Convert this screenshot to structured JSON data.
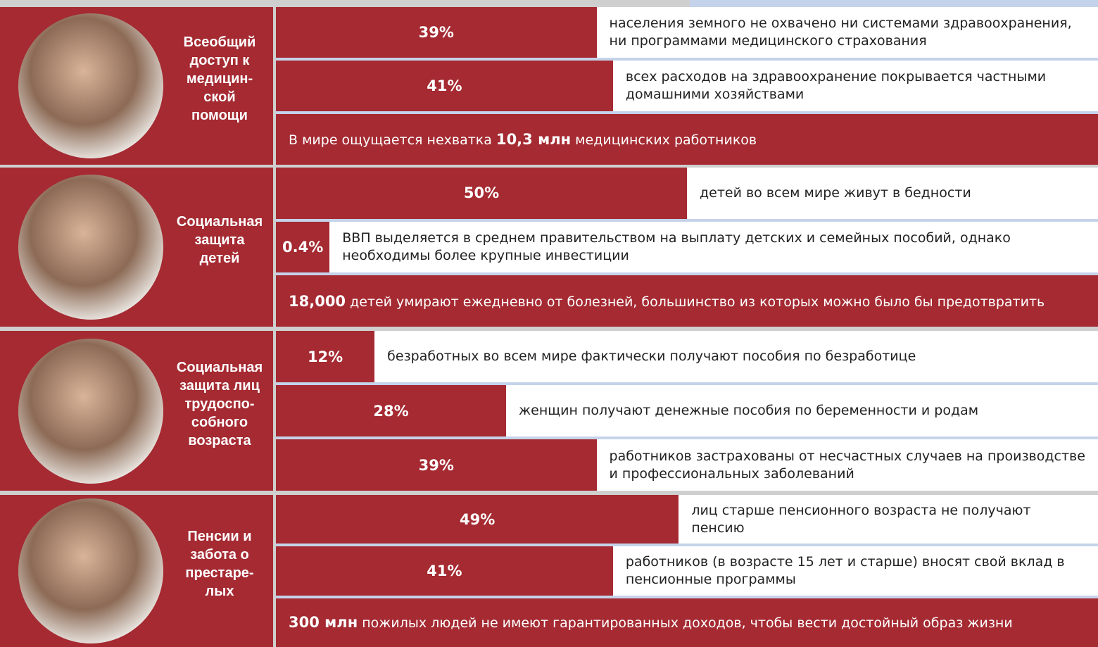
{
  "sections": [
    {
      "title_lines": [
        "Всеобщий",
        "доступ к",
        "медицин-",
        "ской",
        "помощи"
      ],
      "rows": [
        {
          "value": {
            "value": 39,
            "label": "39%"
          },
          "text": "населения земного не охвачено ни системами здравоохранения, ни программами медицинского страхования"
        },
        {
          "value": {
            "value": 41,
            "label": "41%"
          },
          "text": "всех расходов на здравоохранение покрывается частными домашними хозяйствами"
        },
        {
          "before": "В мире ощущается нехватка ",
          "bold": "10,3 млн",
          "after": " медицинских работников"
        }
      ]
    },
    {
      "title_lines": [
        "Социальная",
        "защита",
        "детей"
      ],
      "rows": [
        {
          "value": {
            "value": 50,
            "label": "50%"
          },
          "text": "детей во всем мире живут в бедности"
        },
        {
          "value": 0.4,
          "label": "0.4%",
          "text": "ВВП выделяется в среднем правительством на выплату детских и семейных пособий, однако необходимы более крупные инвестиции"
        },
        {
          "before": "",
          "bold": "18,000",
          "after": " детей умирают ежедневно от болезней, большинство из которых можно было бы предотвратить"
        }
      ]
    },
    {
      "title_lines": [
        "Социальная",
        "защита лиц",
        "трудоспо-",
        "собного",
        "возраста"
      ],
      "rows": [
        {
          "value": {
            "value": 12,
            "label": "12%"
          },
          "text": "безработных во всем мире фактически получают пособия по безработице"
        },
        {
          "value": {
            "value": 28,
            "label": "28%"
          },
          "text": "женщин получают денежные пособия по беременности и родам"
        },
        {
          "value": {
            "value": 39,
            "label": "39%"
          },
          "text": "работников застрахованы от несчастных случаев на производстве и профессиональных заболеваний"
        }
      ]
    },
    {
      "title_lines": [
        "Пенсии и",
        "забота о",
        "престаре-",
        "лых"
      ],
      "rows": [
        {
          "value": {
            "value": 49,
            "label": "49%"
          },
          "text": "лиц старше пенсионного возраста не получают пенсию"
        },
        {
          "value": {
            "value": 41,
            "label": "41%"
          },
          "text": "работников (в возрасте 15 лет и старше) вносят свой вклад в пенсионные программы"
        },
        {
          "before": "",
          "bold": "300 млн",
          "after": " пожилых людей не имеют гарантированных доходов, чтобы вести достойный образ жизни"
        }
      ]
    }
  ]
}
